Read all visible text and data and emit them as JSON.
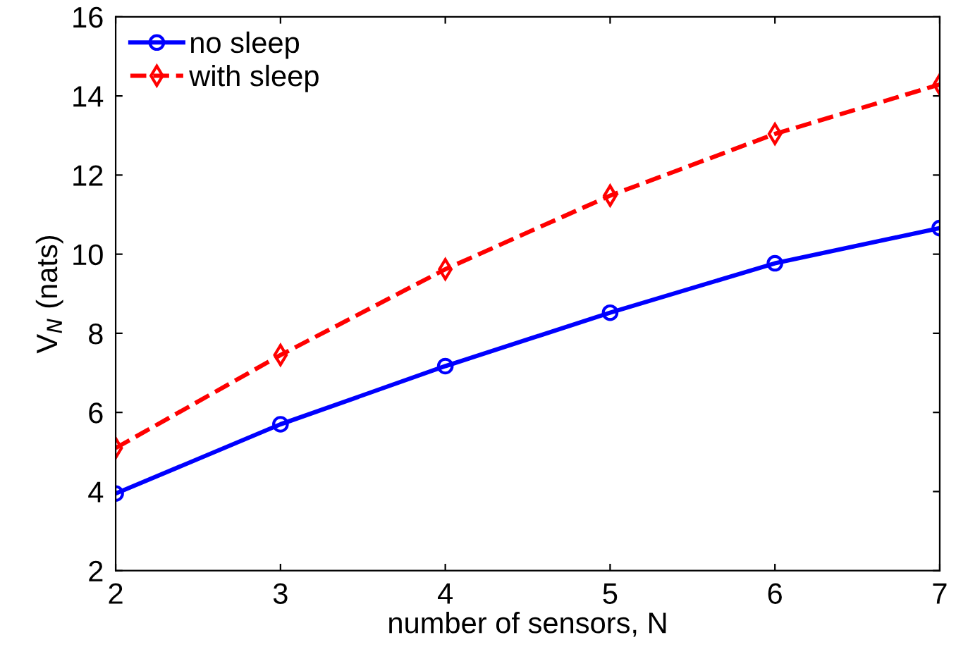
{
  "chart_data": {
    "type": "line",
    "xlabel": "number of sensors, N",
    "ylabel": "V$_{N}$ (nats)",
    "x": [
      2,
      3,
      4,
      5,
      6,
      7
    ],
    "series": [
      {
        "name": "no sleep",
        "color": "#0000ff",
        "values": [
          3.95,
          5.7,
          7.17,
          8.52,
          9.77,
          10.66
        ],
        "marker": "circle",
        "line_style": "solid"
      },
      {
        "name": "with sleep",
        "color": "#ff0000",
        "values": [
          5.1,
          7.45,
          9.62,
          11.48,
          13.04,
          14.29
        ],
        "marker": "diamond",
        "line_style": "dashed"
      }
    ],
    "xlim": [
      2,
      7
    ],
    "xticks": [
      2,
      3,
      4,
      5,
      6,
      7
    ],
    "ylim": [
      2,
      16
    ],
    "yticks": [
      2,
      4,
      6,
      8,
      10,
      12,
      14,
      16
    ],
    "grid": false,
    "legend": "top left"
  }
}
